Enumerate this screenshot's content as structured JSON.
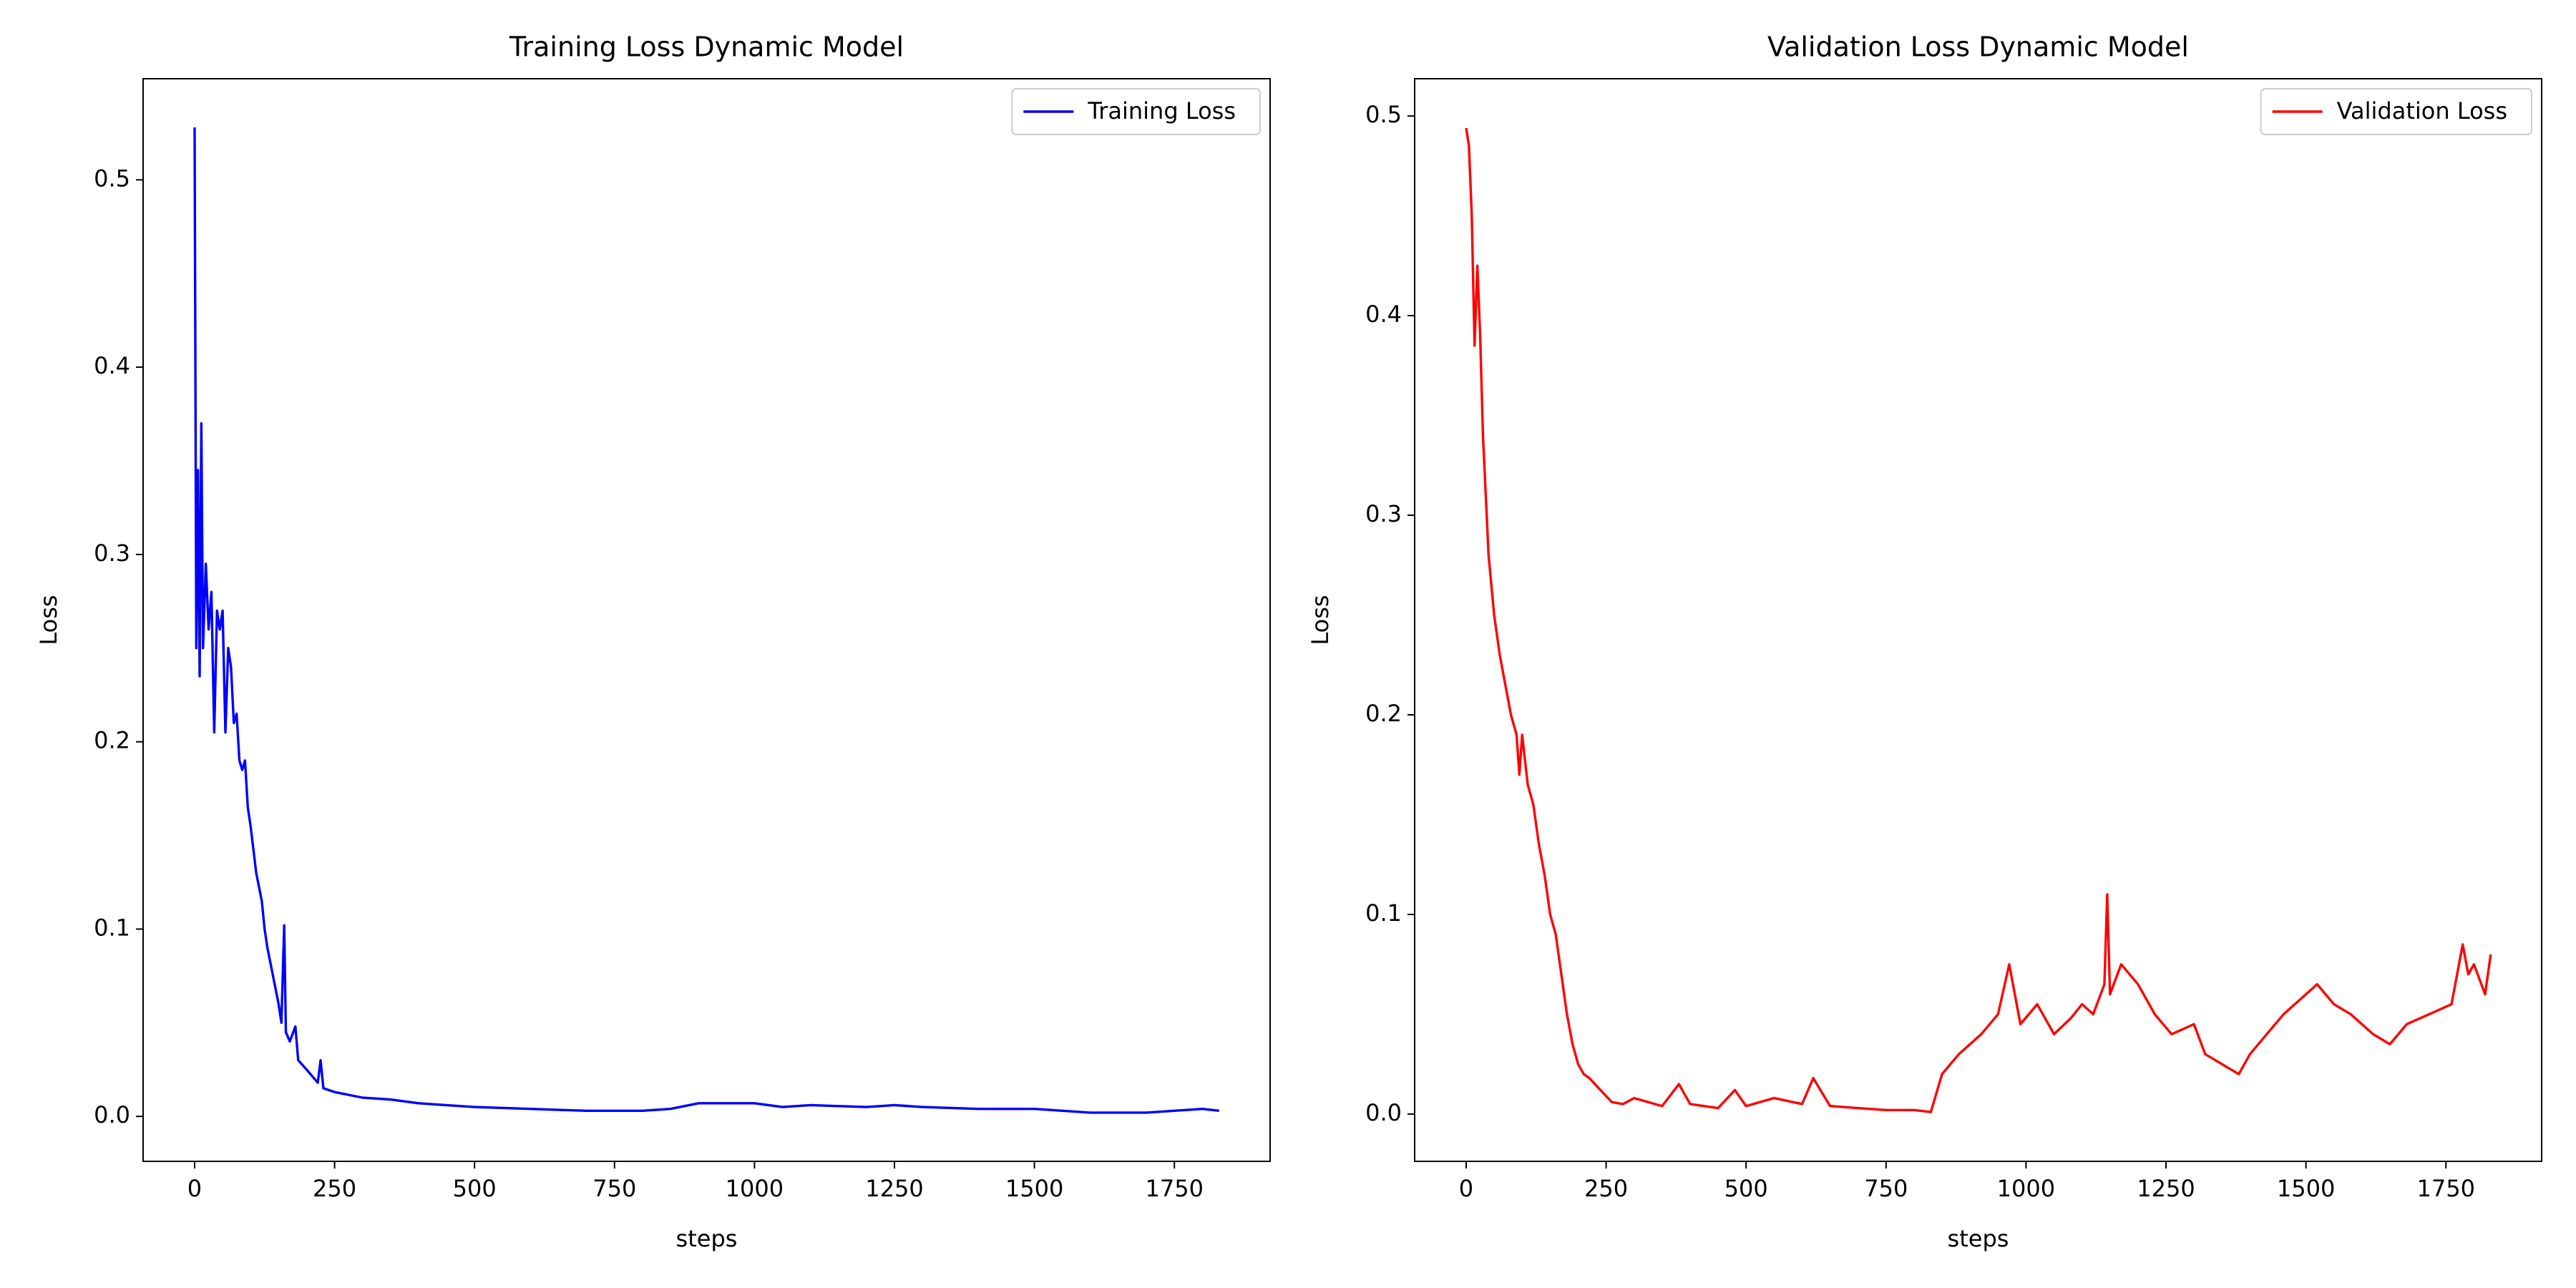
{
  "chart_data": [
    {
      "type": "line",
      "title": "Training Loss Dynamic Model",
      "xlabel": "steps",
      "ylabel": "Loss",
      "x": [
        0,
        3,
        6,
        9,
        12,
        15,
        20,
        25,
        30,
        35,
        40,
        45,
        50,
        55,
        60,
        65,
        70,
        75,
        80,
        85,
        90,
        95,
        100,
        110,
        120,
        125,
        130,
        140,
        150,
        155,
        160,
        163,
        170,
        180,
        185,
        200,
        220,
        225,
        230,
        250,
        300,
        350,
        400,
        500,
        600,
        700,
        800,
        850,
        900,
        1000,
        1050,
        1100,
        1200,
        1250,
        1300,
        1400,
        1500,
        1550,
        1600,
        1700,
        1800,
        1830
      ],
      "series": [
        {
          "name": "Training Loss",
          "color": "#0000ff",
          "values": [
            0.528,
            0.25,
            0.345,
            0.235,
            0.37,
            0.25,
            0.295,
            0.26,
            0.28,
            0.205,
            0.27,
            0.26,
            0.27,
            0.205,
            0.25,
            0.24,
            0.21,
            0.215,
            0.19,
            0.185,
            0.19,
            0.165,
            0.155,
            0.13,
            0.115,
            0.1,
            0.09,
            0.075,
            0.06,
            0.05,
            0.102,
            0.045,
            0.04,
            0.048,
            0.03,
            0.025,
            0.018,
            0.03,
            0.015,
            0.013,
            0.01,
            0.009,
            0.007,
            0.005,
            0.004,
            0.003,
            0.003,
            0.004,
            0.007,
            0.007,
            0.005,
            0.006,
            0.005,
            0.006,
            0.005,
            0.004,
            0.004,
            0.003,
            0.002,
            0.002,
            0.004,
            0.003
          ]
        }
      ],
      "xlim": [
        -92,
        1921
      ],
      "ylim": [
        -0.024,
        0.554
      ],
      "xticks": [
        0,
        250,
        500,
        750,
        1000,
        1250,
        1500,
        1750
      ],
      "yticks": [
        {
          "value": 0,
          "label": "0.0"
        },
        0.1,
        0.2,
        0.3,
        0.4,
        0.5
      ],
      "legend": "upper right"
    },
    {
      "type": "line",
      "title": "Validation Loss Dynamic Model",
      "xlabel": "steps",
      "ylabel": "Loss",
      "x": [
        0,
        5,
        10,
        15,
        20,
        25,
        30,
        35,
        40,
        50,
        60,
        70,
        80,
        90,
        95,
        100,
        110,
        120,
        130,
        140,
        150,
        160,
        170,
        180,
        190,
        200,
        210,
        220,
        240,
        260,
        280,
        300,
        350,
        380,
        400,
        450,
        480,
        500,
        550,
        600,
        620,
        650,
        700,
        750,
        800,
        830,
        850,
        880,
        920,
        950,
        970,
        990,
        1020,
        1050,
        1080,
        1100,
        1120,
        1140,
        1145,
        1150,
        1170,
        1200,
        1230,
        1260,
        1300,
        1320,
        1350,
        1380,
        1400,
        1430,
        1460,
        1500,
        1520,
        1550,
        1580,
        1620,
        1650,
        1680,
        1720,
        1760,
        1780,
        1790,
        1800,
        1820,
        1830
      ],
      "series": [
        {
          "name": "Validation Loss",
          "color": "#ff0000",
          "values": [
            0.494,
            0.485,
            0.45,
            0.385,
            0.425,
            0.39,
            0.34,
            0.31,
            0.28,
            0.25,
            0.23,
            0.215,
            0.2,
            0.19,
            0.17,
            0.19,
            0.165,
            0.155,
            0.135,
            0.12,
            0.1,
            0.09,
            0.07,
            0.05,
            0.035,
            0.025,
            0.02,
            0.018,
            0.012,
            0.006,
            0.005,
            0.008,
            0.004,
            0.015,
            0.005,
            0.003,
            0.012,
            0.004,
            0.008,
            0.005,
            0.018,
            0.004,
            0.003,
            0.002,
            0.002,
            0.001,
            0.02,
            0.03,
            0.04,
            0.05,
            0.075,
            0.045,
            0.055,
            0.04,
            0.048,
            0.055,
            0.05,
            0.065,
            0.11,
            0.06,
            0.075,
            0.065,
            0.05,
            0.04,
            0.045,
            0.03,
            0.025,
            0.02,
            0.03,
            0.04,
            0.05,
            0.06,
            0.065,
            0.055,
            0.05,
            0.04,
            0.035,
            0.045,
            0.05,
            0.055,
            0.085,
            0.07,
            0.075,
            0.06,
            0.08
          ]
        }
      ],
      "xlim": [
        -92,
        1921
      ],
      "ylim": [
        -0.0237,
        0.5187
      ],
      "xticks": [
        0,
        250,
        500,
        750,
        1000,
        1250,
        1500,
        1750
      ],
      "yticks": [
        {
          "value": 0,
          "label": "0.0"
        },
        0.1,
        0.2,
        0.3,
        0.4,
        0.5
      ],
      "legend": "upper right"
    }
  ]
}
